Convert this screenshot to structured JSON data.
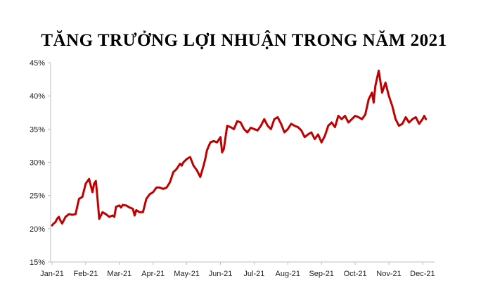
{
  "chart_data": {
    "type": "line",
    "title": "TĂNG TRƯỞNG LỢI NHUẬN TRONG NĂM 2021",
    "xlabel": "",
    "ylabel": "",
    "ylim": [
      15,
      45
    ],
    "yticks": [
      "15%",
      "20%",
      "25%",
      "30%",
      "35%",
      "40%",
      "45%"
    ],
    "ytick_values": [
      15,
      20,
      25,
      30,
      35,
      40,
      45
    ],
    "xticks": [
      "Jan-21",
      "Feb-21",
      "Mar-21",
      "Apr-21",
      "May-21",
      "Jun-21",
      "Jul-21",
      "Aug-21",
      "Sep-21",
      "Oct-21",
      "Nov-21",
      "Dec-21"
    ],
    "grid": false,
    "legend": "none",
    "line_color": "#C00000",
    "series": [
      {
        "x": [
          0.0,
          0.05,
          0.1,
          0.15,
          0.2,
          0.25,
          0.3,
          0.4,
          0.5,
          0.6,
          0.7,
          0.8,
          0.9,
          1.0,
          1.1,
          1.2,
          1.25,
          1.3,
          1.35,
          1.4,
          1.45,
          1.5,
          1.6,
          1.7,
          1.8,
          1.85,
          1.9,
          2.0,
          2.05,
          2.1,
          2.2,
          2.3,
          2.4,
          2.45,
          2.5,
          2.6,
          2.7,
          2.8,
          2.9,
          3.0,
          3.1,
          3.2,
          3.3,
          3.4,
          3.5,
          3.6,
          3.7,
          3.8,
          3.85,
          3.9,
          4.0,
          4.1,
          4.2,
          4.3,
          4.4,
          4.5,
          4.55,
          4.6,
          4.7,
          4.8,
          4.9,
          5.0,
          5.05,
          5.1,
          5.2,
          5.3,
          5.4,
          5.5,
          5.6,
          5.7,
          5.8,
          5.9,
          6.0,
          6.1,
          6.2,
          6.3,
          6.4,
          6.5,
          6.6,
          6.7,
          6.8,
          6.9,
          7.0,
          7.1,
          7.2,
          7.3,
          7.4,
          7.5,
          7.6,
          7.7,
          7.8,
          7.9,
          8.0,
          8.1,
          8.2,
          8.3,
          8.4,
          8.5,
          8.6,
          8.7,
          8.8,
          8.9,
          9.0,
          9.1,
          9.2,
          9.3,
          9.4,
          9.5,
          9.55,
          9.6,
          9.7,
          9.8,
          9.9,
          10.0,
          10.1,
          10.2,
          10.3,
          10.4,
          10.5,
          10.6,
          10.7,
          10.8,
          10.9,
          11.0,
          11.05,
          11.1
        ],
        "values": [
          20.5,
          20.8,
          21.0,
          21.5,
          21.8,
          21.2,
          20.8,
          21.8,
          22.2,
          22.1,
          22.2,
          24.5,
          24.8,
          26.8,
          27.5,
          25.5,
          26.8,
          27.2,
          24.5,
          21.5,
          22.0,
          22.5,
          22.2,
          21.8,
          22.0,
          21.8,
          23.3,
          23.5,
          23.2,
          23.6,
          23.5,
          23.2,
          23.0,
          22.0,
          22.8,
          22.5,
          22.5,
          24.5,
          25.2,
          25.5,
          26.2,
          26.2,
          26.0,
          26.2,
          27.0,
          28.5,
          29.0,
          29.8,
          29.5,
          30.0,
          30.5,
          30.8,
          29.5,
          28.8,
          27.8,
          29.5,
          30.5,
          31.8,
          33.0,
          33.2,
          33.0,
          33.8,
          31.5,
          32.0,
          35.5,
          35.3,
          35.0,
          36.2,
          36.0,
          35.0,
          34.5,
          35.2,
          35.0,
          34.8,
          35.5,
          36.5,
          35.5,
          35.0,
          36.5,
          36.8,
          35.8,
          34.5,
          35.0,
          35.8,
          35.5,
          35.3,
          34.8,
          33.8,
          34.2,
          34.5,
          33.5,
          34.2,
          33.0,
          34.0,
          35.5,
          36.0,
          35.3,
          37.0,
          36.5,
          37.0,
          36.0,
          36.5,
          37.0,
          36.8,
          36.5,
          37.2,
          39.5,
          40.5,
          39.0,
          41.5,
          43.8,
          40.5,
          42.0,
          40.0,
          38.5,
          36.5,
          35.5,
          35.8,
          36.8,
          36.0,
          36.5,
          36.8,
          35.8,
          36.5,
          37.0,
          36.5
        ]
      }
    ]
  }
}
